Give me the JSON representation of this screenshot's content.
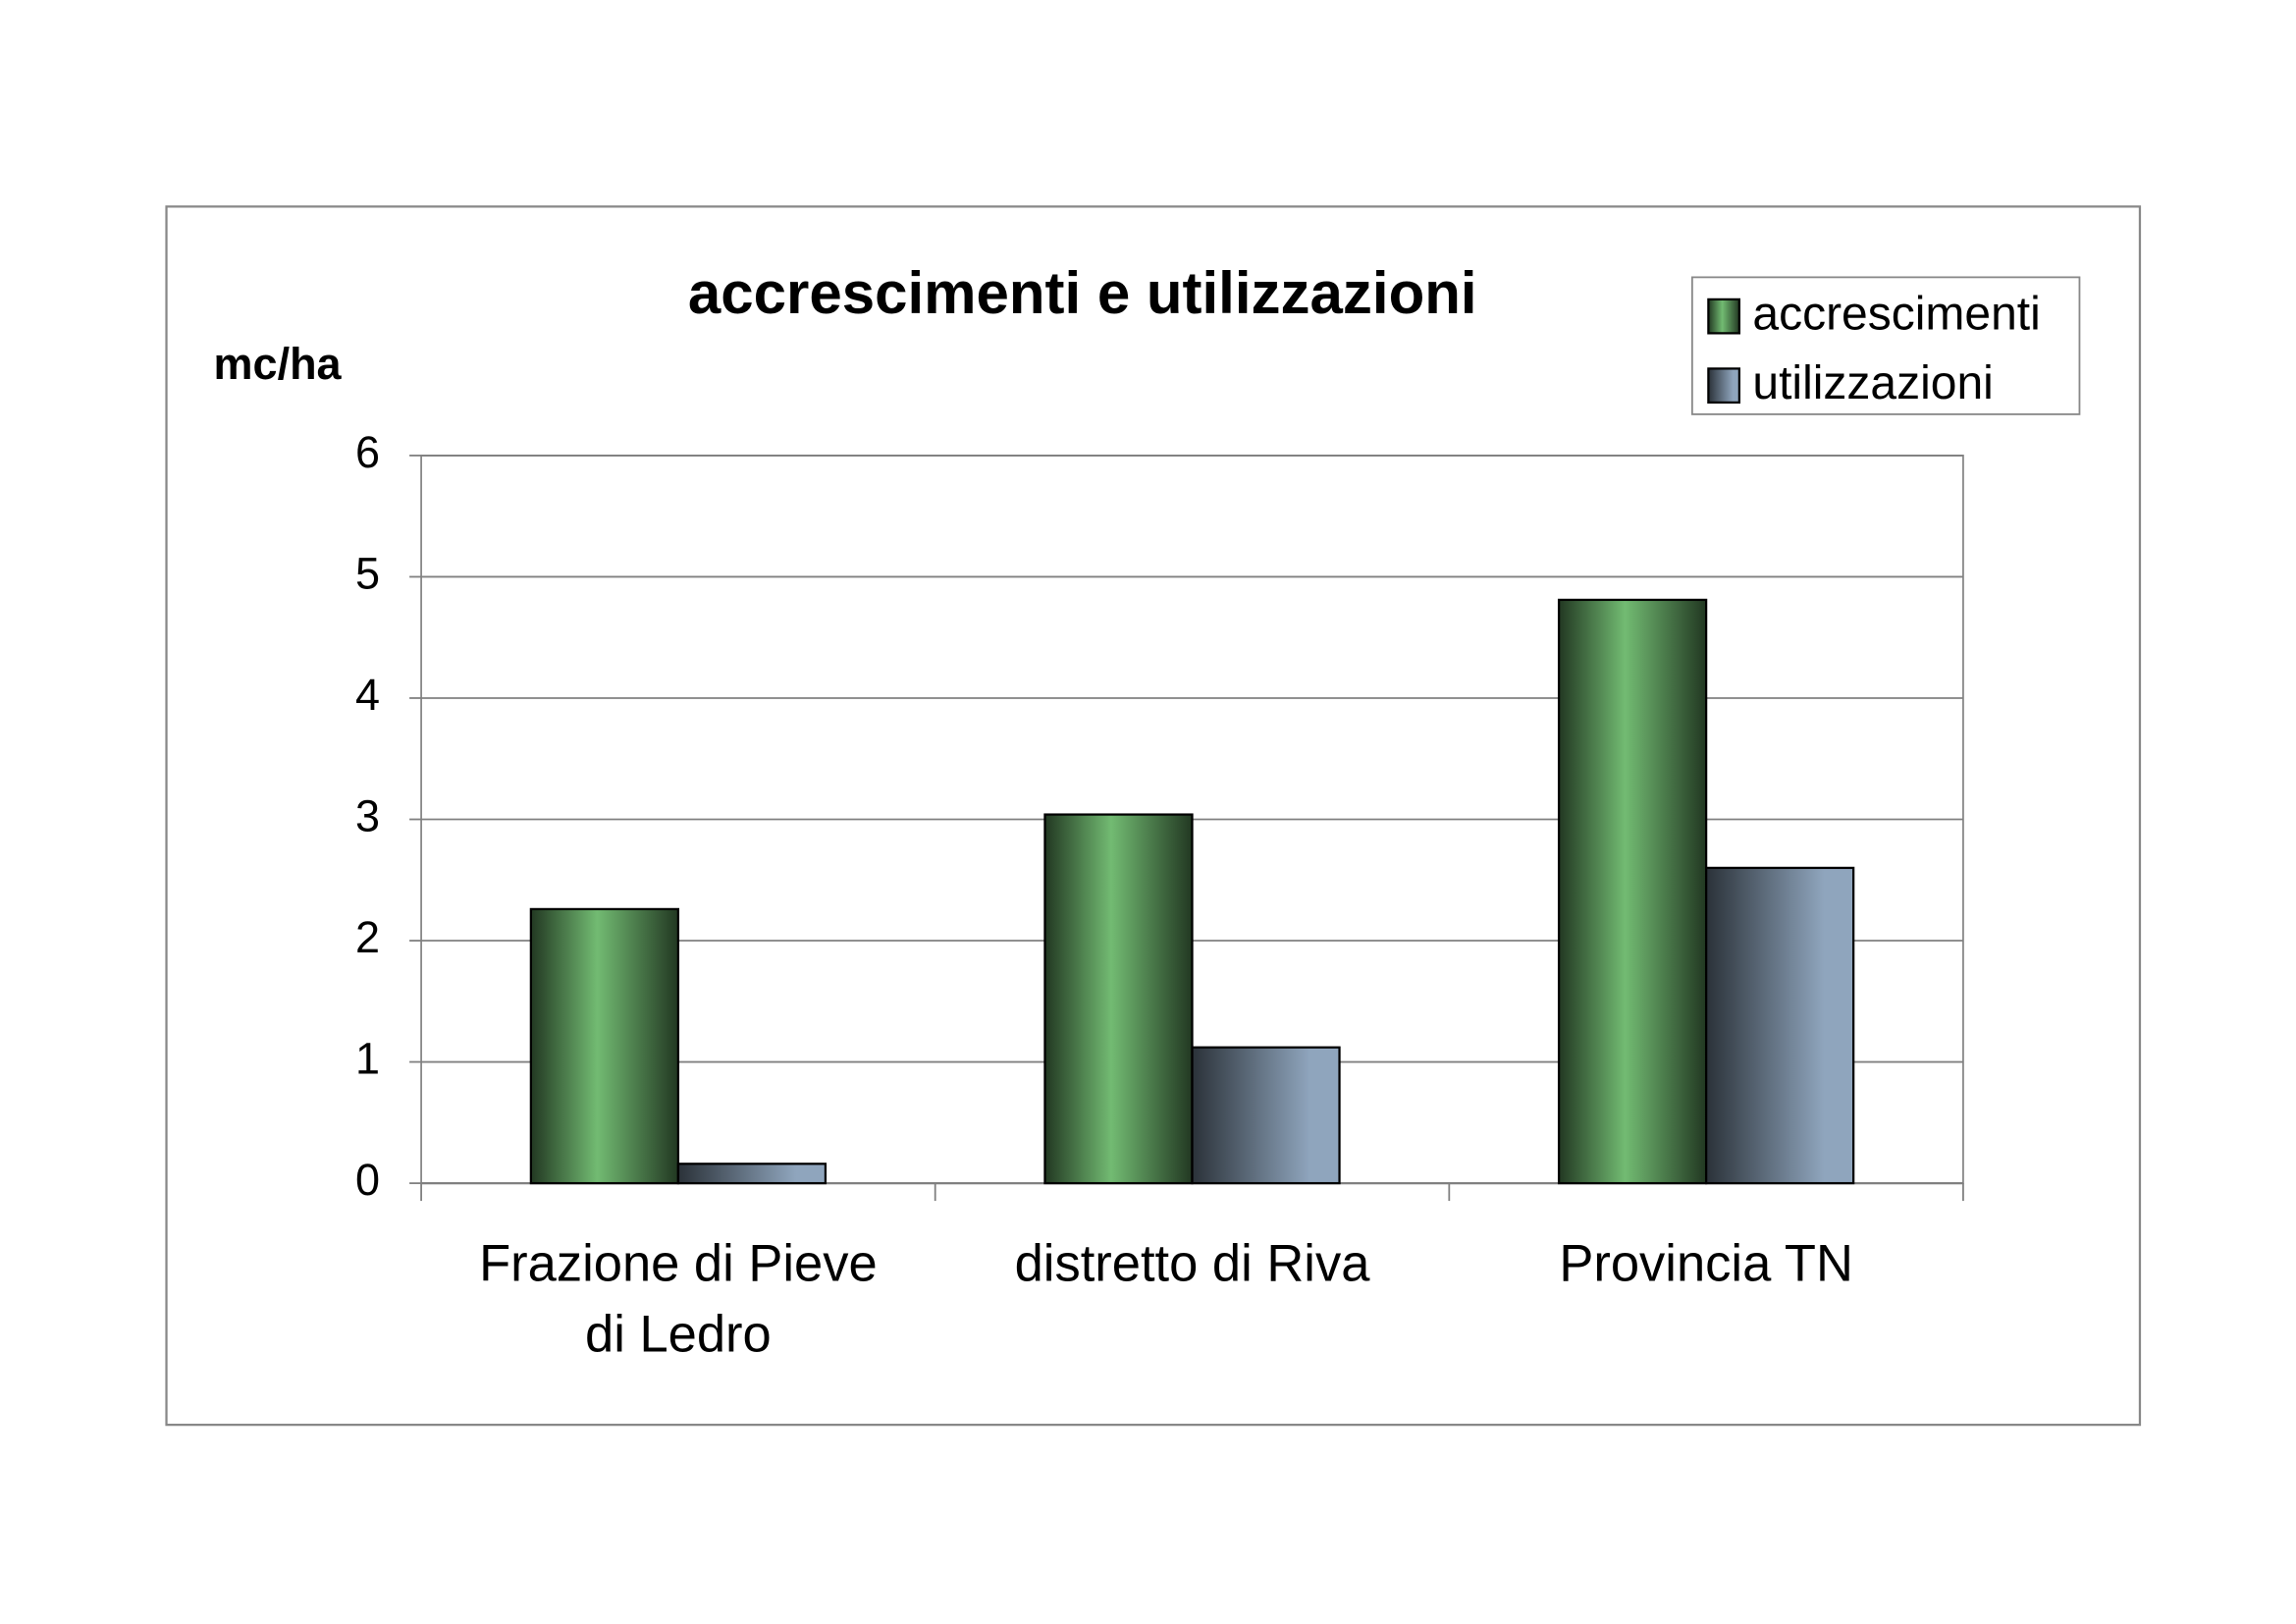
{
  "chart_data": {
    "type": "bar",
    "title": "accrescimenti e utilizzazioni",
    "y_label": "mc/ha",
    "categories": [
      "Frazione di Pieve di Ledro",
      "distretto di Riva",
      "Provincia TN"
    ],
    "series": [
      {
        "name": "accrescimenti",
        "color": "#72bb72",
        "values": [
          2.26,
          3.04,
          4.81
        ]
      },
      {
        "name": "utilizzazioni",
        "color": "#8fa5bd",
        "values": [
          0.16,
          1.12,
          2.6
        ]
      }
    ],
    "ylim": [
      0,
      6
    ],
    "yticks": [
      0,
      1,
      2,
      3,
      4,
      5,
      6
    ],
    "grid": true,
    "legend": "top-right"
  }
}
